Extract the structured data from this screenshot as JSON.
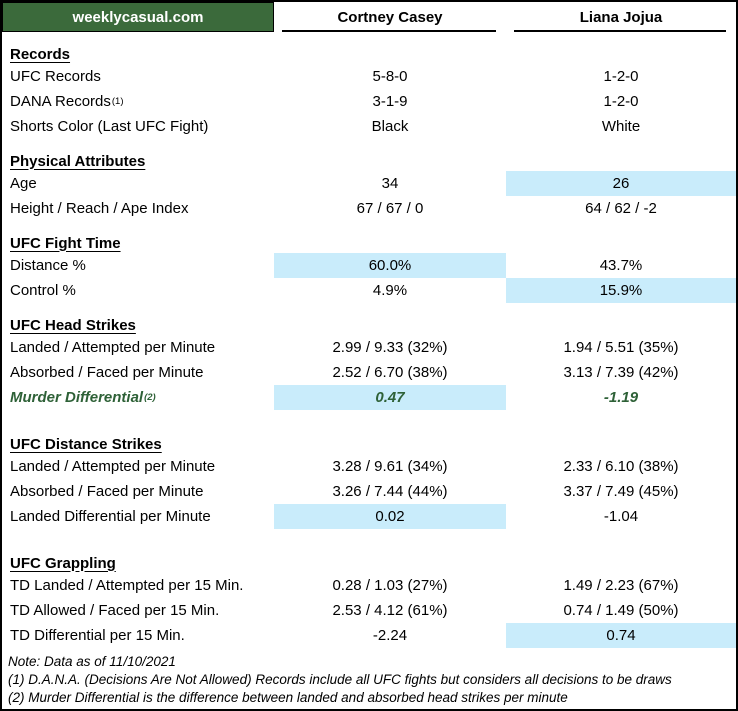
{
  "brand": {
    "site": "weeklycasual.com",
    "green": "#3b6a3b"
  },
  "highlight_color": "#c9ecfb",
  "fighters": {
    "left": "Cortney Casey",
    "right": "Liana Jojua"
  },
  "sections": [
    {
      "title": "Records",
      "rows": [
        {
          "label": "UFC Records",
          "sup": "",
          "values": [
            "5-8-0",
            "1-2-0"
          ],
          "highlight": -1
        },
        {
          "label": "DANA Records",
          "sup": "(1)",
          "values": [
            "3-1-9",
            "1-2-0"
          ],
          "highlight": -1
        },
        {
          "label": "Shorts Color (Last UFC Fight)",
          "sup": "",
          "values": [
            "Black",
            "White"
          ],
          "highlight": -1
        }
      ]
    },
    {
      "title": "Physical Attributes",
      "rows": [
        {
          "label": "Age",
          "sup": "",
          "values": [
            "34",
            "26"
          ],
          "highlight": 1
        },
        {
          "label": "Height / Reach / Ape Index",
          "sup": "",
          "values": [
            "67 / 67 / 0",
            "64 / 62 / -2"
          ],
          "highlight": -1
        }
      ]
    },
    {
      "title": "UFC Fight Time",
      "rows": [
        {
          "label": "Distance %",
          "sup": "",
          "values": [
            "60.0%",
            "43.7%"
          ],
          "highlight": 0
        },
        {
          "label": "Control %",
          "sup": "",
          "values": [
            "4.9%",
            "15.9%"
          ],
          "highlight": 1
        }
      ]
    },
    {
      "title": "UFC Head Strikes",
      "rows": [
        {
          "label": "Landed / Attempted per Minute",
          "sup": "",
          "values": [
            "2.99 / 9.33 (32%)",
            "1.94 / 5.51 (35%)"
          ],
          "highlight": -1
        },
        {
          "label": "Absorbed / Faced per Minute",
          "sup": "",
          "values": [
            "2.52 / 6.70 (38%)",
            "3.13 / 7.39 (42%)"
          ],
          "highlight": -1
        },
        {
          "label": "Murder Differential",
          "sup": "(2)",
          "values": [
            "0.47",
            "-1.19"
          ],
          "highlight": 0,
          "style": "green-italic"
        }
      ]
    },
    {
      "title": "UFC Distance Strikes",
      "rows": [
        {
          "label": "Landed / Attempted per Minute",
          "sup": "",
          "values": [
            "3.28 / 9.61 (34%)",
            "2.33 / 6.10 (38%)"
          ],
          "highlight": -1
        },
        {
          "label": "Absorbed / Faced per Minute",
          "sup": "",
          "values": [
            "3.26 / 7.44 (44%)",
            "3.37 / 7.49 (45%)"
          ],
          "highlight": -1
        },
        {
          "label": "Landed Differential per Minute",
          "sup": "",
          "values": [
            "0.02",
            "-1.04"
          ],
          "highlight": 0
        }
      ]
    },
    {
      "title": "UFC Grappling",
      "rows": [
        {
          "label": "TD Landed / Attempted per 15 Min.",
          "sup": "",
          "values": [
            "0.28 / 1.03 (27%)",
            "1.49 / 2.23 (67%)"
          ],
          "highlight": -1
        },
        {
          "label": "TD Allowed / Faced per 15 Min.",
          "sup": "",
          "values": [
            "2.53 / 4.12 (61%)",
            "0.74 / 1.49 (50%)"
          ],
          "highlight": -1
        },
        {
          "label": "TD Differential per 15 Min.",
          "sup": "",
          "values": [
            "-2.24",
            "0.74"
          ],
          "highlight": 1
        }
      ]
    }
  ],
  "notes": [
    "Note: Data as of 11/10/2021",
    "(1) D.A.N.A. (Decisions Are Not Allowed) Records include all UFC fights but considers all decisions to be draws",
    "(2) Murder Differential is the difference between landed and absorbed head strikes per minute"
  ]
}
